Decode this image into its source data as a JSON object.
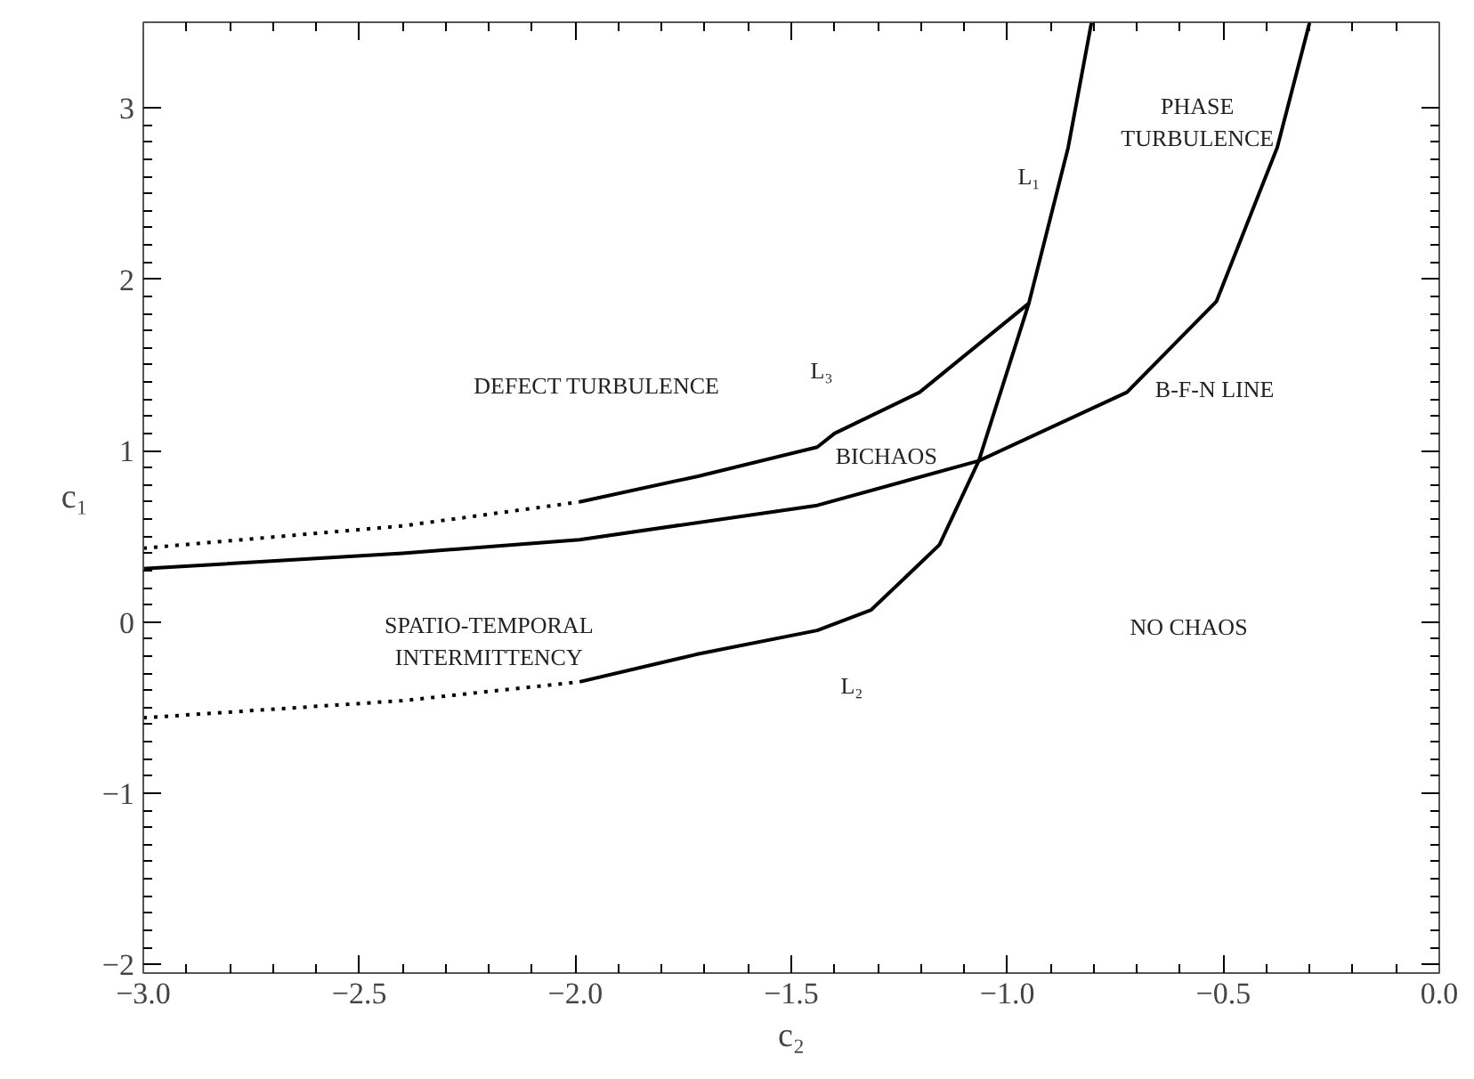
{
  "chart_data": {
    "type": "line",
    "xlabel": "c₂",
    "ylabel": "c₁",
    "xlim": [
      -3.0,
      0.0
    ],
    "ylim": [
      -2.05,
      3.5
    ],
    "xticks": [
      {
        "value": -3,
        "label": "−3.0"
      },
      {
        "value": -2.5,
        "label": "−2.5"
      },
      {
        "value": -2,
        "label": "−2.0"
      },
      {
        "value": -1.5,
        "label": "−1.5"
      },
      {
        "value": -1,
        "label": "−1.0"
      },
      {
        "value": -0.5,
        "label": "−0.5"
      },
      {
        "value": 0,
        "label": "0.0"
      }
    ],
    "yticks": [
      {
        "value": -2,
        "label": "−2"
      },
      {
        "value": -1,
        "label": "−1"
      },
      0,
      1,
      2,
      3
    ],
    "grid": false,
    "marker": "none",
    "series": [
      {
        "color": "#000000",
        "line_style": "solid",
        "x": [
          -1.99,
          -1.72,
          -1.44,
          -1.315,
          -1.19,
          -1.157,
          -1.066,
          -0.95,
          -0.859,
          -0.805
        ],
        "values": [
          -0.35,
          -0.19,
          -0.05,
          0.07,
          0.37,
          0.45,
          0.94,
          1.86,
          2.77,
          3.5
        ]
      },
      {
        "color": "#000000",
        "line_style": "dotted",
        "x": [
          -3.0,
          -2.4,
          -1.99
        ],
        "values": [
          -0.56,
          -0.46,
          -0.35
        ]
      },
      {
        "color": "#000000",
        "line_style": "solid",
        "x": [
          -1.99,
          -1.716,
          -1.44,
          -1.4,
          -1.203,
          -0.95
        ],
        "values": [
          0.7,
          0.85,
          1.02,
          1.1,
          1.34,
          1.86
        ]
      },
      {
        "color": "#000000",
        "line_style": "dotted",
        "x": [
          -3.0,
          -2.4,
          -1.99
        ],
        "values": [
          0.43,
          0.56,
          0.7
        ]
      },
      {
        "color": "#000000",
        "line_style": "solid",
        "x": [
          -3.0,
          -2.4,
          -1.99,
          -1.44,
          -1.066,
          -0.723,
          -0.516,
          -0.375,
          -0.3
        ],
        "values": [
          0.31,
          0.4,
          0.48,
          0.68,
          0.94,
          1.34,
          1.87,
          2.77,
          3.5
        ]
      }
    ],
    "annotations": [
      "DEFECT TURBULENCE",
      "L₃",
      "L₁",
      "PHASE\nTURBULENCE",
      "B-F-N LINE",
      "BICHAOS",
      "SPATIO-TEMPORAL\nINTERMITTENCY",
      "L₂",
      "NO CHAOS"
    ]
  }
}
